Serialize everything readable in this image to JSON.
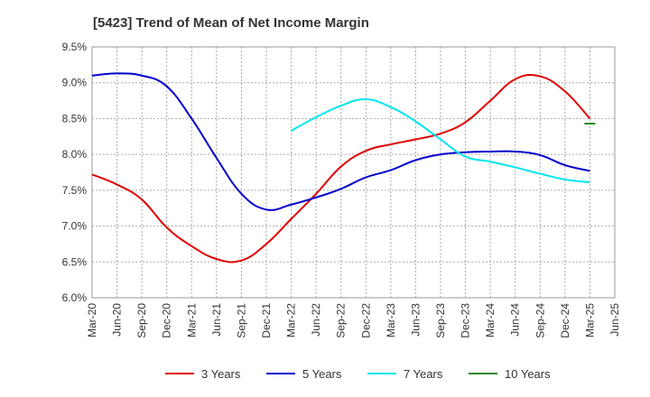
{
  "chart_data": {
    "type": "line",
    "title": "[5423]  Trend of Mean of Net Income Margin",
    "xlabel": "",
    "ylabel": "",
    "ylim": [
      6.0,
      9.5
    ],
    "y_ticks": [
      "6.0%",
      "6.5%",
      "7.0%",
      "7.5%",
      "8.0%",
      "8.5%",
      "9.0%",
      "9.5%"
    ],
    "y_tick_values": [
      6.0,
      6.5,
      7.0,
      7.5,
      8.0,
      8.5,
      9.0,
      9.5
    ],
    "x_ticks": [
      "Mar-20",
      "Jun-20",
      "Sep-20",
      "Dec-20",
      "Mar-21",
      "Jun-21",
      "Sep-21",
      "Dec-21",
      "Mar-22",
      "Jun-22",
      "Sep-22",
      "Dec-22",
      "Mar-23",
      "Jun-23",
      "Sep-23",
      "Dec-23",
      "Mar-24",
      "Jun-24",
      "Sep-24",
      "Dec-24",
      "Mar-25",
      "Jun-25"
    ],
    "grid": true,
    "legend_position": "bottom",
    "series": [
      {
        "name": "3 Years",
        "color": "#e00000",
        "points": [
          [
            "Mar-20",
            7.72
          ],
          [
            "Jun-20",
            7.58
          ],
          [
            "Sep-20",
            7.37
          ],
          [
            "Dec-20",
            6.98
          ],
          [
            "Mar-21",
            6.72
          ],
          [
            "Jun-21",
            6.54
          ],
          [
            "Sep-21",
            6.52
          ],
          [
            "Dec-21",
            6.75
          ],
          [
            "Mar-22",
            7.1
          ],
          [
            "Jun-22",
            7.45
          ],
          [
            "Sep-22",
            7.83
          ],
          [
            "Dec-22",
            8.05
          ],
          [
            "Mar-23",
            8.14
          ],
          [
            "Jun-23",
            8.21
          ],
          [
            "Sep-23",
            8.29
          ],
          [
            "Dec-23",
            8.45
          ],
          [
            "Mar-24",
            8.75
          ],
          [
            "Jun-24",
            9.05
          ],
          [
            "Sep-24",
            9.09
          ],
          [
            "Dec-24",
            8.88
          ],
          [
            "Mar-25",
            8.5
          ]
        ]
      },
      {
        "name": "5 Years",
        "color": "#0000cc",
        "points": [
          [
            "Mar-20",
            9.1
          ],
          [
            "Jun-20",
            9.13
          ],
          [
            "Sep-20",
            9.1
          ],
          [
            "Dec-20",
            8.95
          ],
          [
            "Mar-21",
            8.5
          ],
          [
            "Jun-21",
            7.95
          ],
          [
            "Sep-21",
            7.45
          ],
          [
            "Dec-21",
            7.23
          ],
          [
            "Mar-22",
            7.3
          ],
          [
            "Jun-22",
            7.4
          ],
          [
            "Sep-22",
            7.52
          ],
          [
            "Dec-22",
            7.68
          ],
          [
            "Mar-23",
            7.78
          ],
          [
            "Jun-23",
            7.92
          ],
          [
            "Sep-23",
            8.0
          ],
          [
            "Dec-23",
            8.03
          ],
          [
            "Mar-24",
            8.04
          ],
          [
            "Jun-24",
            8.04
          ],
          [
            "Sep-24",
            7.99
          ],
          [
            "Dec-24",
            7.85
          ],
          [
            "Mar-25",
            7.77
          ]
        ]
      },
      {
        "name": "7 Years",
        "color": "#00e5ee",
        "points": [
          [
            "Mar-22",
            8.33
          ],
          [
            "Jun-22",
            8.52
          ],
          [
            "Sep-22",
            8.68
          ],
          [
            "Dec-22",
            8.77
          ],
          [
            "Mar-23",
            8.66
          ],
          [
            "Jun-23",
            8.46
          ],
          [
            "Sep-23",
            8.21
          ],
          [
            "Dec-23",
            7.97
          ],
          [
            "Mar-24",
            7.9
          ],
          [
            "Jun-24",
            7.82
          ],
          [
            "Sep-24",
            7.73
          ],
          [
            "Dec-24",
            7.65
          ],
          [
            "Mar-25",
            7.61
          ]
        ]
      },
      {
        "name": "10 Years",
        "color": "#228b22",
        "points": [
          [
            "Mar-25",
            8.43
          ]
        ]
      }
    ]
  }
}
